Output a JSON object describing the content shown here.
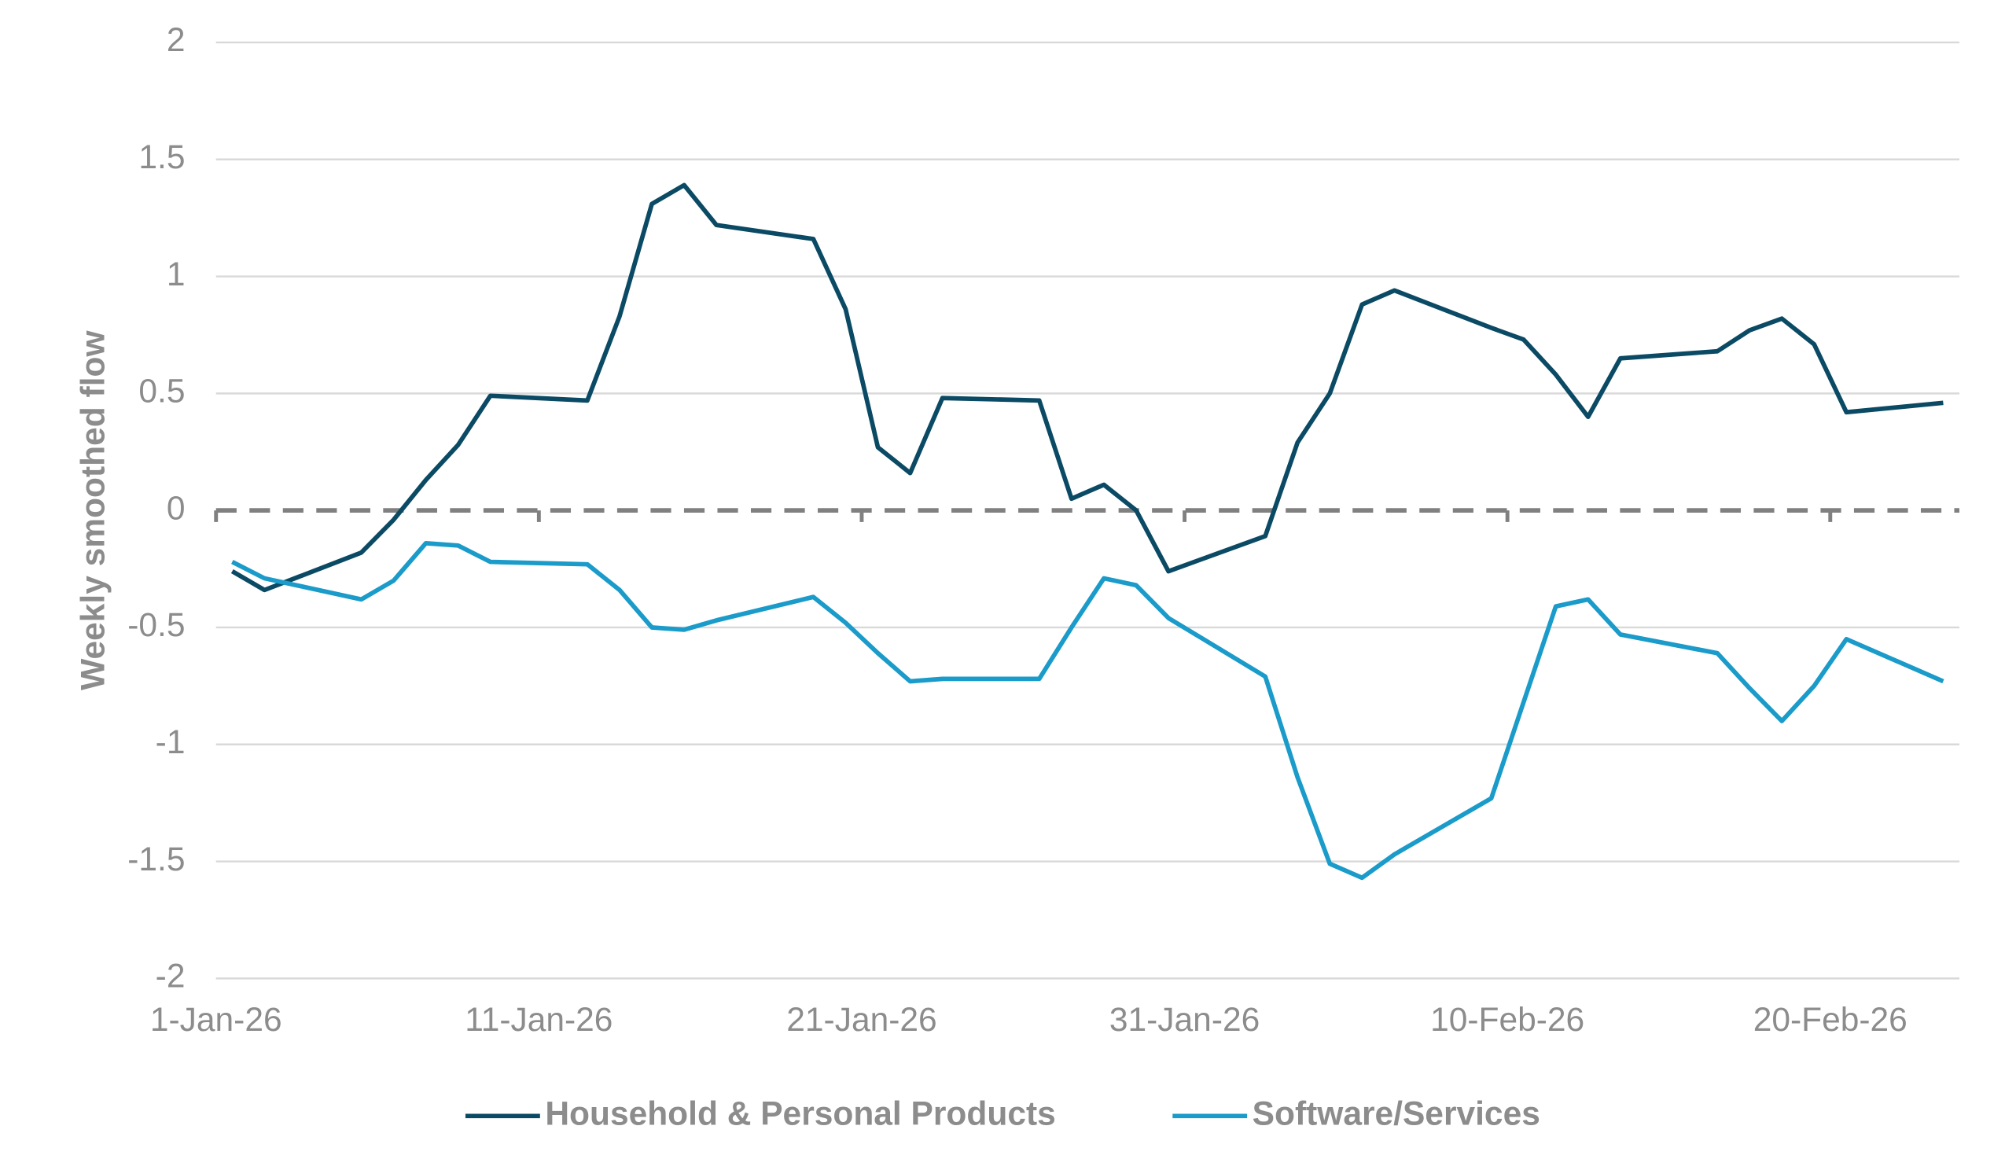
{
  "chart_data": {
    "type": "line",
    "y_label": "Weekly smoothed flow",
    "x": [
      "2026-01-01",
      "2026-01-02",
      "2026-01-05",
      "2026-01-06",
      "2026-01-07",
      "2026-01-08",
      "2026-01-09",
      "2026-01-12",
      "2026-01-13",
      "2026-01-14",
      "2026-01-15",
      "2026-01-16",
      "2026-01-19",
      "2026-01-20",
      "2026-01-21",
      "2026-01-22",
      "2026-01-23",
      "2026-01-26",
      "2026-01-27",
      "2026-01-28",
      "2026-01-29",
      "2026-01-30",
      "2026-02-02",
      "2026-02-03",
      "2026-02-04",
      "2026-02-05",
      "2026-02-06",
      "2026-02-09",
      "2026-02-10",
      "2026-02-11",
      "2026-02-12",
      "2026-02-13",
      "2026-02-16",
      "2026-02-17",
      "2026-02-18",
      "2026-02-19",
      "2026-02-20",
      "2026-02-23"
    ],
    "series": [
      {
        "name": "Household & Personal Products",
        "color": "#0b4a64",
        "values": [
          -0.26,
          -0.34,
          -0.18,
          -0.04,
          0.13,
          0.28,
          0.49,
          0.47,
          0.83,
          1.31,
          1.39,
          1.22,
          1.16,
          0.86,
          0.27,
          0.16,
          0.48,
          0.47,
          0.05,
          0.11,
          0.0,
          -0.26,
          -0.11,
          0.29,
          0.5,
          0.88,
          0.94,
          0.78,
          0.73,
          0.58,
          0.4,
          0.65,
          0.68,
          0.77,
          0.82,
          0.71,
          0.42,
          0.46
        ]
      },
      {
        "name": "Software/Services",
        "color": "#1a9bc9",
        "values": [
          -0.22,
          -0.29,
          -0.38,
          -0.3,
          -0.14,
          -0.15,
          -0.22,
          -0.23,
          -0.34,
          -0.5,
          -0.51,
          -0.47,
          -0.37,
          -0.48,
          -0.61,
          -0.73,
          -0.72,
          -0.72,
          -0.5,
          -0.29,
          -0.32,
          -0.46,
          -0.71,
          -1.14,
          -1.51,
          -1.57,
          -1.47,
          -1.23,
          -0.82,
          -0.41,
          -0.38,
          -0.53,
          -0.61,
          -0.76,
          -0.9,
          -0.75,
          -0.55,
          -0.73
        ]
      }
    ],
    "xlim": [
      "2026-01-01",
      "2026-02-24"
    ],
    "xticks": [
      {
        "value": "2026-01-01",
        "label": "1-Jan-26"
      },
      {
        "value": "2026-01-11",
        "label": "11-Jan-26"
      },
      {
        "value": "2026-01-21",
        "label": "21-Jan-26"
      },
      {
        "value": "2026-01-31",
        "label": "31-Jan-26"
      },
      {
        "value": "2026-02-10",
        "label": "10-Feb-26"
      },
      {
        "value": "2026-02-20",
        "label": "20-Feb-26"
      }
    ],
    "ylim": [
      -2,
      2
    ],
    "yticks": [
      -2,
      -1.5,
      -1,
      -0.5,
      0,
      0.5,
      1,
      1.5,
      2
    ],
    "grid": true,
    "legend": "bottom"
  }
}
